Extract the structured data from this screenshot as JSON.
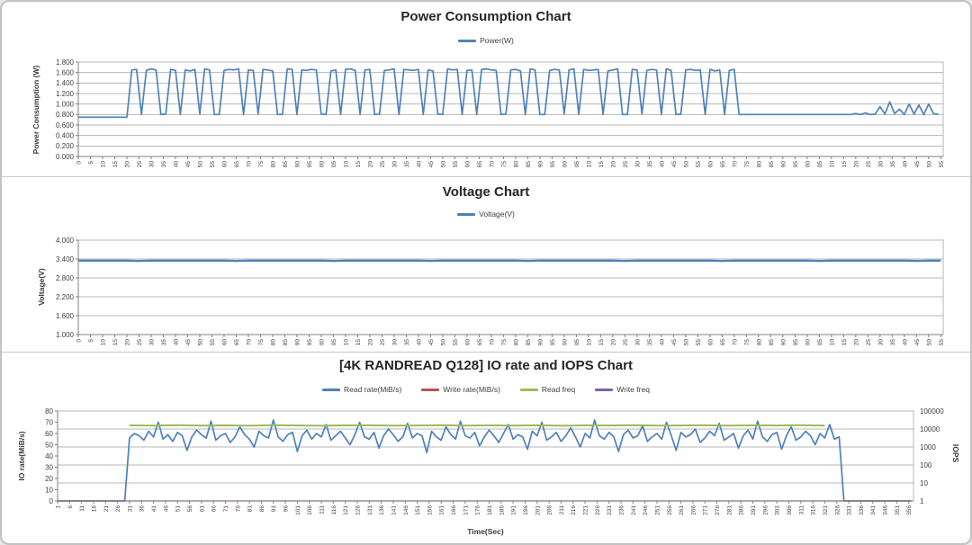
{
  "page": {
    "background": "#ffffff",
    "frame_border": "#c2c2c2"
  },
  "chart_data": [
    {
      "type": "line",
      "title": "Power Consumption Chart",
      "ylabel": "Power Consumption (W)",
      "legend": [
        {
          "label": "Power(W)",
          "color": "#4F81BD"
        }
      ],
      "ylim": [
        0,
        1.8
      ],
      "ytick_step": 0.2,
      "ytick_decimals": 3,
      "xlim": [
        0,
        356
      ],
      "xlabel_start": 0,
      "xlabel_step": 5,
      "xlabel_end": 355,
      "grid": "on",
      "legend_position": "top",
      "series": [
        {
          "name": "Power(W)",
          "color": "#4F81BD",
          "width": 1.7,
          "x_start": 0,
          "x_step": 2,
          "values": [
            0.75,
            0.75,
            0.75,
            0.75,
            0.75,
            0.75,
            0.75,
            0.75,
            0.75,
            0.75,
            0.75,
            1.65,
            1.66,
            0.8,
            1.64,
            1.67,
            1.65,
            0.8,
            0.81,
            1.66,
            1.64,
            0.8,
            1.65,
            1.63,
            1.66,
            0.81,
            1.67,
            1.65,
            0.8,
            0.8,
            1.64,
            1.66,
            1.65,
            1.67,
            0.8,
            1.65,
            1.64,
            0.81,
            1.66,
            1.65,
            1.63,
            0.8,
            0.8,
            1.67,
            1.66,
            0.8,
            1.65,
            1.64,
            1.66,
            1.65,
            0.81,
            0.8,
            1.63,
            1.65,
            0.8,
            1.66,
            1.67,
            1.64,
            0.8,
            1.65,
            1.66,
            0.8,
            0.81,
            1.64,
            1.65,
            1.67,
            0.8,
            1.66,
            1.65,
            1.64,
            1.66,
            0.8,
            1.65,
            1.63,
            0.81,
            0.8,
            1.67,
            1.65,
            1.66,
            0.8,
            1.64,
            1.65,
            0.8,
            1.66,
            1.67,
            1.65,
            1.64,
            0.8,
            0.81,
            1.65,
            1.66,
            1.63,
            0.8,
            1.67,
            1.65,
            0.8,
            0.8,
            1.64,
            1.66,
            1.65,
            0.81,
            1.65,
            1.67,
            0.8,
            1.66,
            1.64,
            1.65,
            1.66,
            0.8,
            1.63,
            1.65,
            1.67,
            0.8,
            0.8,
            1.66,
            1.65,
            0.81,
            1.64,
            1.66,
            1.65,
            0.8,
            1.67,
            1.64,
            0.8,
            0.81,
            1.65,
            1.66,
            1.64,
            1.65,
            0.8,
            1.66,
            1.63,
            1.65,
            0.8,
            1.64,
            1.66,
            0.8,
            0.8,
            0.8,
            0.8,
            0.8,
            0.8,
            0.8,
            0.8,
            0.8,
            0.8,
            0.8,
            0.8,
            0.8,
            0.8,
            0.8,
            0.8,
            0.8,
            0.8,
            0.8,
            0.8,
            0.8,
            0.8,
            0.8,
            0.8,
            0.82,
            0.8,
            0.83,
            0.8,
            0.81,
            0.95,
            0.81,
            1.04,
            0.82,
            0.9,
            0.8,
            1.0,
            0.81,
            0.98,
            0.8,
            1.0,
            0.82,
            0.8
          ]
        }
      ]
    },
    {
      "type": "line",
      "title": "Voltage Chart",
      "ylabel": "Voltage(V)",
      "legend": [
        {
          "label": "Voltage(V)",
          "color": "#4F81BD"
        }
      ],
      "ylim": [
        1.0,
        4.0
      ],
      "ytick_step": 0.6,
      "ytick_decimals": 3,
      "xlim": [
        0,
        356
      ],
      "xlabel_start": 0,
      "xlabel_step": 5,
      "xlabel_end": 355,
      "grid": "on",
      "legend_position": "top",
      "series": [
        {
          "name": "Voltage(V)",
          "color": "#4F81BD",
          "width": 2.3,
          "x_start": 0,
          "x_step": 5,
          "values": [
            3.35,
            3.35,
            3.35,
            3.35,
            3.35,
            3.34,
            3.35,
            3.35,
            3.35,
            3.35,
            3.35,
            3.35,
            3.35,
            3.34,
            3.35,
            3.35,
            3.35,
            3.35,
            3.35,
            3.35,
            3.35,
            3.34,
            3.35,
            3.35,
            3.35,
            3.35,
            3.35,
            3.35,
            3.35,
            3.34,
            3.35,
            3.35,
            3.35,
            3.35,
            3.35,
            3.35,
            3.35,
            3.34,
            3.35,
            3.35,
            3.35,
            3.35,
            3.35,
            3.35,
            3.35,
            3.34,
            3.35,
            3.35,
            3.35,
            3.35,
            3.35,
            3.35,
            3.35,
            3.34,
            3.35,
            3.35,
            3.35,
            3.35,
            3.35,
            3.35,
            3.35,
            3.34,
            3.35,
            3.35,
            3.35,
            3.35,
            3.35,
            3.35,
            3.35,
            3.34,
            3.35,
            3.35
          ]
        }
      ]
    },
    {
      "type": "line",
      "title": "[4K RANDREAD Q128] IO rate and IOPS Chart",
      "ylabel": "IO rate(MiB/s)",
      "y2label": "IOPS",
      "xlabel": "Time(Sec)",
      "legend": [
        {
          "label": "Read rate(MiB/s)",
          "color": "#4F81BD"
        },
        {
          "label": "Write rate(MiB/s)",
          "color": "#C0504D"
        },
        {
          "label": "Read freq",
          "color": "#9BBB59"
        },
        {
          "label": "Write freq",
          "color": "#8064A2"
        }
      ],
      "ylim": [
        0,
        80
      ],
      "ytick_step": 10,
      "ytick_decimals": 0,
      "y2ticks": [
        1,
        10,
        100,
        1000,
        10000,
        100000
      ],
      "xlim": [
        1,
        358
      ],
      "xlabel_start": 1,
      "xlabel_step": 5,
      "xlabel_end": 356,
      "grid": "right-log",
      "legend_position": "top",
      "series": [
        {
          "name": "Read rate(MiB/s)",
          "color": "#4F81BD",
          "width": 1.7,
          "axis": "left",
          "x_start": 1,
          "x_step": 2,
          "values": [
            0,
            0,
            0,
            0,
            0,
            0,
            0,
            0,
            0,
            0,
            0,
            0,
            0,
            0,
            0,
            56,
            60,
            58,
            54,
            62,
            57,
            70,
            55,
            59,
            53,
            61,
            58,
            45,
            57,
            63,
            59,
            56,
            71,
            54,
            58,
            60,
            52,
            57,
            66,
            59,
            55,
            48,
            62,
            58,
            56,
            72,
            57,
            53,
            59,
            61,
            44,
            58,
            63,
            55,
            60,
            57,
            68,
            54,
            58,
            62,
            56,
            50,
            59,
            70,
            57,
            55,
            61,
            47,
            58,
            64,
            59,
            53,
            57,
            69,
            56,
            60,
            58,
            43,
            62,
            57,
            54,
            66,
            59,
            55,
            71,
            58,
            56,
            61,
            49,
            57,
            63,
            58,
            52,
            60,
            68,
            55,
            59,
            57,
            46,
            62,
            58,
            70,
            54,
            57,
            61,
            53,
            58,
            65,
            57,
            48,
            60,
            56,
            72,
            58,
            55,
            61,
            57,
            44,
            59,
            63,
            56,
            58,
            67,
            53,
            57,
            60,
            55,
            70,
            58,
            45,
            61,
            57,
            59,
            64,
            52,
            56,
            62,
            58,
            69,
            54,
            57,
            60,
            47,
            58,
            63,
            55,
            71,
            57,
            53,
            59,
            61,
            46,
            58,
            66,
            54,
            57,
            62,
            58,
            50,
            60,
            56,
            68,
            55,
            57,
            0,
            0,
            0,
            0,
            0,
            0,
            0,
            0,
            0,
            0,
            0,
            0,
            0,
            0,
            0
          ]
        },
        {
          "name": "Write rate(MiB/s)",
          "color": "#C0504D",
          "width": 1.3,
          "axis": "left",
          "x_start": 1,
          "x_step": 2,
          "constant": 0,
          "count": 179
        },
        {
          "name": "Read freq",
          "color": "#9BBB59",
          "width": 2.0,
          "axis": "right",
          "x_start": 31,
          "x_step": 10,
          "values": [
            15800,
            15300,
            16200,
            15500,
            15900,
            15100,
            16400,
            15600,
            15200,
            15800,
            16000,
            15400,
            15700,
            16300,
            15300,
            15900,
            15500,
            16100,
            15200,
            15800,
            15600,
            16500,
            15300,
            15700,
            16000,
            15400,
            15900,
            15600,
            16200,
            15500
          ]
        },
        {
          "name": "Write freq",
          "color": "#8064A2",
          "width": 1.3,
          "axis": "right",
          "x_start": 1,
          "x_step": 2,
          "constant": 0,
          "count": 179
        }
      ]
    }
  ]
}
